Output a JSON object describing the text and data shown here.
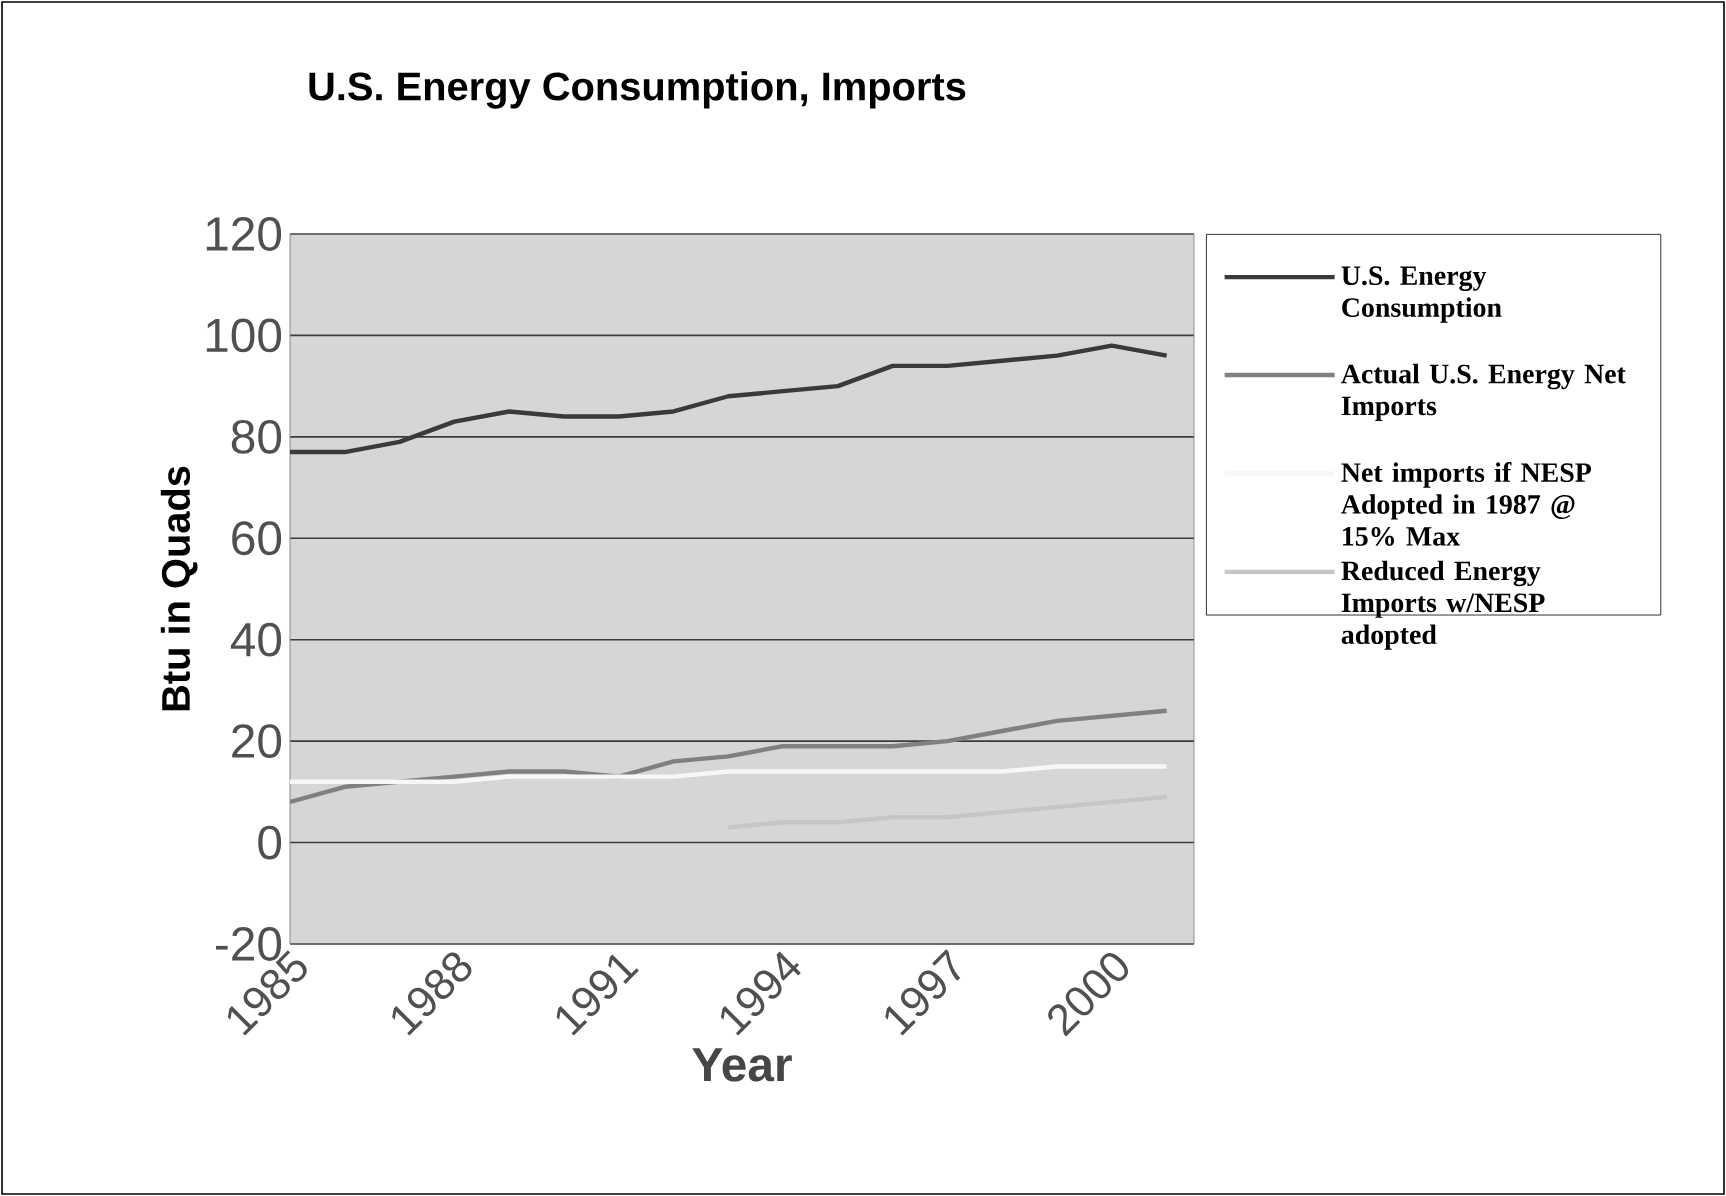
{
  "chart_data": {
    "type": "line",
    "title": "U.S. Energy Consumption, Imports",
    "xlabel": "Year",
    "ylabel": "Btu in Quads",
    "x": [
      1985,
      1986,
      1987,
      1988,
      1989,
      1990,
      1991,
      1992,
      1993,
      1994,
      1995,
      1996,
      1997,
      1998,
      1999,
      2000,
      2001
    ],
    "xlim": [
      1985,
      2001.5
    ],
    "xticks": [
      1985,
      1988,
      1991,
      1994,
      1997,
      2000
    ],
    "ylim": [
      -20,
      120
    ],
    "yticks": [
      -20,
      0,
      20,
      40,
      60,
      80,
      100,
      120
    ],
    "grid": "y",
    "legend": "right",
    "series": [
      {
        "name": "U.S. Energy Consumption",
        "color": "#3a3a3a",
        "values": [
          77,
          77,
          79,
          83,
          85,
          84,
          84,
          85,
          88,
          89,
          90,
          94,
          94,
          95,
          96,
          98,
          96
        ]
      },
      {
        "name": "Actual U.S. Energy Net Imports",
        "color": "#808080",
        "values": [
          8,
          11,
          12,
          13,
          14,
          14,
          13,
          16,
          17,
          19,
          19,
          19,
          20,
          22,
          24,
          25,
          26
        ]
      },
      {
        "name": "Net imports if NESP Adopted in 1987 @ 15% Max",
        "color": "#f7f7f7",
        "values": [
          12,
          12,
          12,
          12,
          13,
          13,
          13,
          13,
          14,
          14,
          14,
          14,
          14,
          14,
          15,
          15,
          15
        ]
      },
      {
        "name": "Reduced Energy Imports w/NESP adopted",
        "color": "#c6c6c6",
        "values": [
          null,
          null,
          null,
          null,
          null,
          null,
          null,
          null,
          3,
          4,
          4,
          5,
          5,
          6,
          7,
          8,
          9
        ]
      }
    ]
  }
}
